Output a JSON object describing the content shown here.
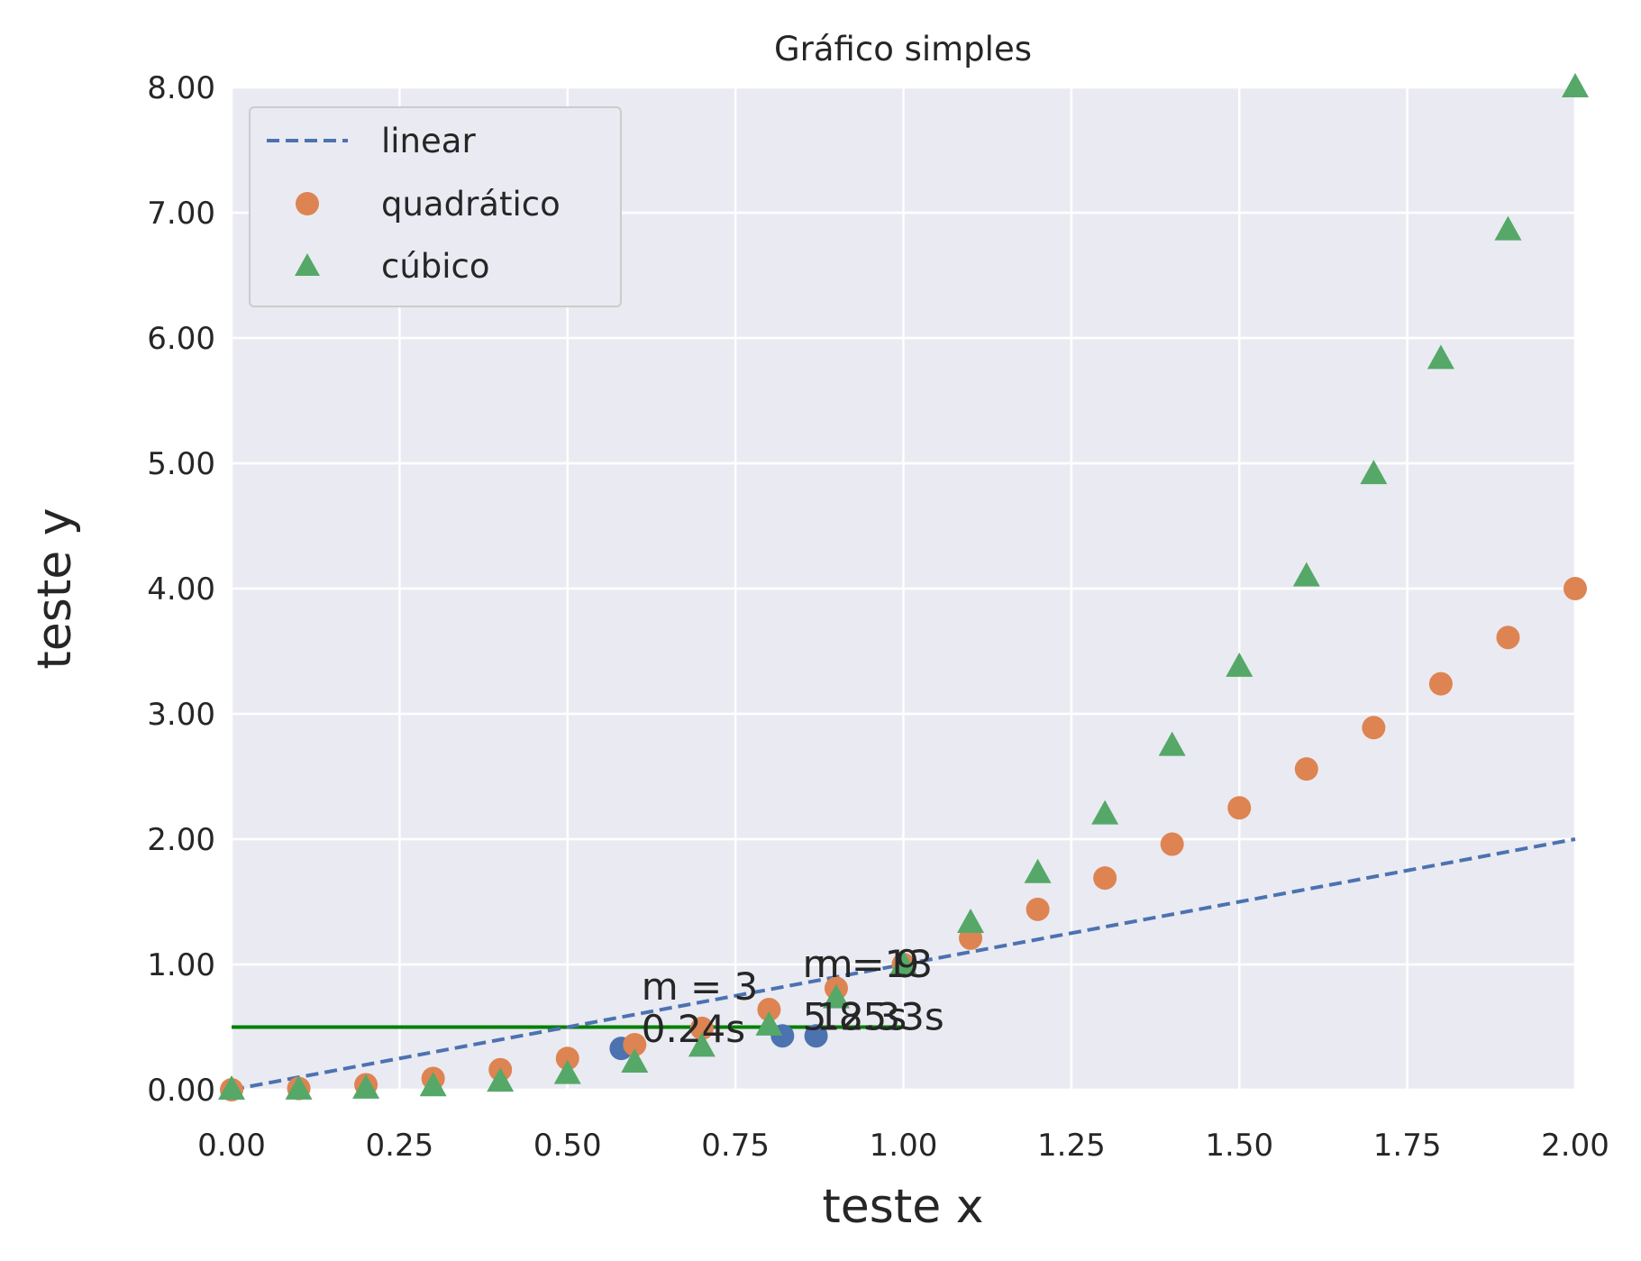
{
  "chart_data": {
    "type": "scatter",
    "title": "Gráfico simples",
    "xlabel": "teste x",
    "ylabel": "teste y",
    "xlim": [
      0,
      2
    ],
    "ylim": [
      0,
      8
    ],
    "xticks": [
      0,
      0.25,
      0.5,
      0.75,
      1.0,
      1.25,
      1.5,
      1.75,
      2.0
    ],
    "xtick_labels": [
      "0.00",
      "0.25",
      "0.50",
      "0.75",
      "1.00",
      "1.25",
      "1.50",
      "1.75",
      "2.00"
    ],
    "yticks": [
      0,
      1,
      2,
      3,
      4,
      5,
      6,
      7,
      8
    ],
    "ytick_labels": [
      "0.00",
      "1.00",
      "2.00",
      "3.00",
      "4.00",
      "5.00",
      "6.00",
      "7.00",
      "8.00"
    ],
    "grid": true,
    "legend_position": "top-left",
    "colors": {
      "background": "#eaeaf2",
      "grid": "#ffffff",
      "linear": "#4c72b0",
      "quadratic": "#dd8452",
      "cubic": "#55a868",
      "hline": "#008000",
      "points": "#4c72b0"
    },
    "series": [
      {
        "name": "linear",
        "style": "dashed-line",
        "x": [
          0,
          2
        ],
        "y": [
          0,
          2
        ]
      },
      {
        "name": "quadrático",
        "style": "circle",
        "x": [
          0,
          0.1,
          0.2,
          0.3,
          0.4,
          0.5,
          0.6,
          0.7,
          0.8,
          0.9,
          1.0,
          1.1,
          1.2,
          1.3,
          1.4,
          1.5,
          1.6,
          1.7,
          1.8,
          1.9,
          2.0
        ],
        "y": [
          0,
          0.01,
          0.04,
          0.09,
          0.16,
          0.25,
          0.36,
          0.49,
          0.64,
          0.81,
          1.0,
          1.21,
          1.44,
          1.69,
          1.96,
          2.25,
          2.56,
          2.89,
          3.24,
          3.61,
          4.0
        ]
      },
      {
        "name": "cúbico",
        "style": "triangle",
        "x": [
          0,
          0.1,
          0.2,
          0.3,
          0.4,
          0.5,
          0.6,
          0.7,
          0.8,
          0.9,
          1.0,
          1.1,
          1.2,
          1.3,
          1.4,
          1.5,
          1.6,
          1.7,
          1.8,
          1.9,
          2.0
        ],
        "y": [
          0,
          0.001,
          0.008,
          0.027,
          0.064,
          0.125,
          0.216,
          0.343,
          0.512,
          0.729,
          1.0,
          1.331,
          1.728,
          2.197,
          2.744,
          3.375,
          4.096,
          4.913,
          5.832,
          6.859,
          8.0
        ]
      }
    ],
    "horizontal_line": {
      "y": 0.5,
      "xmin": 0,
      "xmax": 1.0
    },
    "extra_points": {
      "x": [
        0.58,
        0.82,
        0.87
      ],
      "y": [
        0.33,
        0.43,
        0.43
      ]
    },
    "annotations": [
      {
        "text": "m = 3",
        "x": 0.61,
        "y": 0.72
      },
      {
        "text": "0.24s",
        "x": 0.61,
        "y": 0.38
      },
      {
        "text": "m = 9",
        "x": 0.85,
        "y": 0.9
      },
      {
        "text": "5.85s",
        "x": 0.85,
        "y": 0.48
      },
      {
        "text": "m=13",
        "x": 0.87,
        "y": 0.9
      },
      {
        "text": "12.33s",
        "x": 0.87,
        "y": 0.48
      }
    ]
  }
}
